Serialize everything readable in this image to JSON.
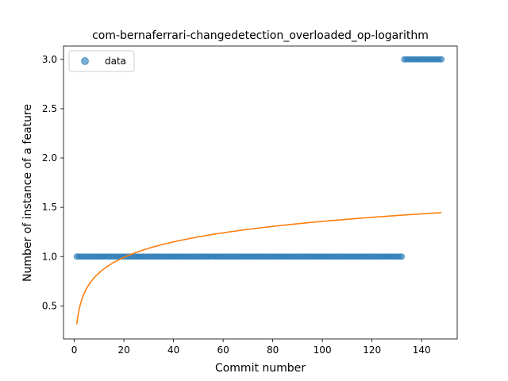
{
  "chart_data": {
    "type": "scatter",
    "title": "com-bernaferrari-changedetection_overloaded_op-logarithm",
    "xlabel": "Commit number",
    "ylabel": "Number of instance of a feature",
    "xlim": [
      -4.35,
      154.35
    ],
    "ylim": [
      0.165,
      3.135
    ],
    "xticks": [
      0,
      20,
      40,
      60,
      80,
      100,
      120,
      140
    ],
    "yticks": [
      0.5,
      1.0,
      1.5,
      2.0,
      2.5,
      3.0
    ],
    "legend": {
      "position": "top-left",
      "entries": [
        "data"
      ]
    },
    "colors": {
      "data": "#1f77b4",
      "fit": "#ff7f0e"
    },
    "series": [
      {
        "name": "data",
        "kind": "scatter",
        "segments": [
          {
            "x_start": 1,
            "x_end": 132,
            "y": 1.0
          },
          {
            "x_start": 133,
            "x_end": 148,
            "y": 3.0
          }
        ]
      },
      {
        "kind": "line",
        "model": "logarithmic fit",
        "x_range": [
          1,
          148
        ],
        "points": [
          [
            1,
            0.313
          ],
          [
            2,
            0.47
          ],
          [
            3,
            0.562
          ],
          [
            5,
            0.678
          ],
          [
            10,
            0.835
          ],
          [
            20,
            0.992
          ],
          [
            30,
            1.084
          ],
          [
            40,
            1.149
          ],
          [
            60,
            1.241
          ],
          [
            80,
            1.306
          ],
          [
            100,
            1.357
          ],
          [
            120,
            1.398
          ],
          [
            148,
            1.446
          ]
        ]
      }
    ]
  }
}
